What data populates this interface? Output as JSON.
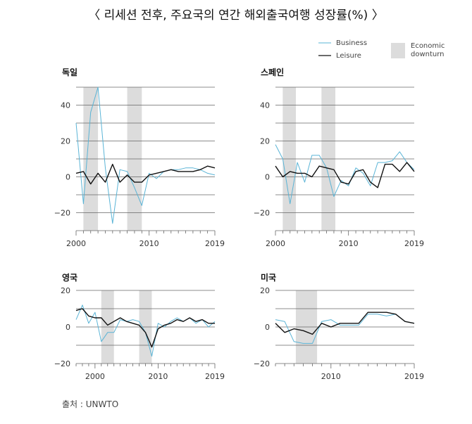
{
  "title": "〈 리세션 전후, 주요국의 연간 해외출국여행 성장률(%) 〉",
  "source": "출처 : UNWTO",
  "colors": {
    "business": "#5ab4d6",
    "leisure": "#111111",
    "downturn": "#dcdcdc",
    "grid": "#666666"
  },
  "legend": {
    "business": "Business",
    "leisure": "Leisure",
    "downturn": "Economic downturn"
  },
  "chart_data": [
    {
      "type": "line",
      "title": "독일",
      "xlim": [
        2000,
        2019
      ],
      "ylim": [
        -30,
        50
      ],
      "yticks": [
        -20,
        0,
        20,
        40
      ],
      "xticks": [
        2000,
        2010,
        2019
      ],
      "downturns": [
        [
          2001,
          2003
        ],
        [
          2007,
          2009
        ]
      ],
      "series": [
        {
          "name": "Business",
          "x": [
            2000,
            2001,
            2002,
            2003,
            2004,
            2005,
            2006,
            2007,
            2008,
            2009,
            2010,
            2011,
            2012,
            2013,
            2014,
            2015,
            2016,
            2017,
            2018,
            2019
          ],
          "values": [
            30,
            -15,
            36,
            50,
            5,
            -26,
            4,
            3,
            -6,
            -16,
            2,
            -1,
            3,
            4,
            4,
            5,
            5,
            4,
            2,
            1
          ]
        },
        {
          "name": "Leisure",
          "x": [
            2000,
            2001,
            2002,
            2003,
            2004,
            2005,
            2006,
            2007,
            2008,
            2009,
            2010,
            2011,
            2012,
            2013,
            2014,
            2015,
            2016,
            2017,
            2018,
            2019
          ],
          "values": [
            2,
            3,
            -4,
            2,
            -3,
            7,
            -3,
            1,
            -3,
            -3,
            1,
            2,
            3,
            4,
            3,
            3,
            3,
            4,
            6,
            5
          ]
        }
      ]
    },
    {
      "type": "line",
      "title": "스페인",
      "xlim": [
        2000,
        2019
      ],
      "ylim": [
        -30,
        50
      ],
      "yticks": [
        -20,
        0,
        20,
        40
      ],
      "xticks": [
        2000,
        2010,
        2019
      ],
      "downturns": [
        [
          2001,
          2002.8
        ],
        [
          2006.3,
          2008.2
        ]
      ],
      "series": [
        {
          "name": "Business",
          "x": [
            2000,
            2001,
            2002,
            2003,
            2004,
            2005,
            2006,
            2007,
            2008,
            2009,
            2010,
            2011,
            2012,
            2013,
            2014,
            2015,
            2016,
            2017,
            2018,
            2019
          ],
          "values": [
            18,
            10,
            -15,
            8,
            -3,
            12,
            12,
            5,
            -11,
            -2,
            -5,
            5,
            2,
            -5,
            8,
            8,
            9,
            14,
            8,
            4
          ]
        },
        {
          "name": "Leisure",
          "x": [
            2000,
            2001,
            2002,
            2003,
            2004,
            2005,
            2006,
            2007,
            2008,
            2009,
            2010,
            2011,
            2012,
            2013,
            2014,
            2015,
            2016,
            2017,
            2018,
            2019
          ],
          "values": [
            6,
            0,
            3,
            2,
            2,
            0,
            6,
            5,
            4,
            -3,
            -4,
            3,
            4,
            -3,
            -6,
            7,
            7,
            3,
            8,
            3
          ]
        }
      ]
    },
    {
      "type": "line",
      "title": "영국",
      "xlim": [
        1997,
        2019
      ],
      "ylim": [
        -20,
        20
      ],
      "yticks": [
        -20,
        0,
        20
      ],
      "xticks": [
        2000,
        2010,
        2019
      ],
      "downturns": [
        [
          2001,
          2003
        ],
        [
          2007,
          2009
        ]
      ],
      "series": [
        {
          "name": "Business",
          "x": [
            1997,
            1998,
            1999,
            2000,
            2001,
            2002,
            2003,
            2004,
            2005,
            2006,
            2007,
            2008,
            2009,
            2010,
            2011,
            2012,
            2013,
            2014,
            2015,
            2016,
            2017,
            2018,
            2019
          ],
          "values": [
            4,
            12,
            2,
            8,
            -8,
            -3,
            -3,
            4,
            3,
            4,
            3,
            -3,
            -16,
            2,
            0,
            3,
            5,
            3,
            5,
            2,
            4,
            0,
            3
          ]
        },
        {
          "name": "Leisure",
          "x": [
            1997,
            1998,
            1999,
            2000,
            2001,
            2002,
            2003,
            2004,
            2005,
            2006,
            2007,
            2008,
            2009,
            2010,
            2011,
            2012,
            2013,
            2014,
            2015,
            2016,
            2017,
            2018,
            2019
          ],
          "values": [
            9,
            10,
            6,
            5,
            5,
            1,
            3,
            5,
            3,
            2,
            1,
            -3,
            -11,
            -1,
            1,
            2,
            4,
            3,
            5,
            3,
            4,
            2,
            2
          ]
        }
      ]
    },
    {
      "type": "line",
      "title": "미국",
      "xlim": [
        2004,
        2019
      ],
      "ylim": [
        -20,
        20
      ],
      "yticks": [
        -20,
        0,
        20
      ],
      "xticks": [
        2010,
        2019
      ],
      "downturns": [
        [
          2006.2,
          2008.5
        ]
      ],
      "series": [
        {
          "name": "Business",
          "x": [
            2004,
            2005,
            2006,
            2007,
            2008,
            2009,
            2010,
            2011,
            2012,
            2013,
            2014,
            2015,
            2016,
            2017,
            2018,
            2019
          ],
          "values": [
            4,
            3,
            -8,
            -9,
            -9,
            3,
            4,
            1,
            1,
            1,
            7,
            7,
            6,
            7,
            3,
            2
          ]
        },
        {
          "name": "Leisure",
          "x": [
            2004,
            2005,
            2006,
            2007,
            2008,
            2009,
            2010,
            2011,
            2012,
            2013,
            2014,
            2015,
            2016,
            2017,
            2018,
            2019
          ],
          "values": [
            2,
            -3,
            -1,
            -2,
            -4,
            2,
            0,
            2,
            2,
            2,
            8,
            8,
            8,
            7,
            3,
            2
          ]
        }
      ]
    }
  ]
}
